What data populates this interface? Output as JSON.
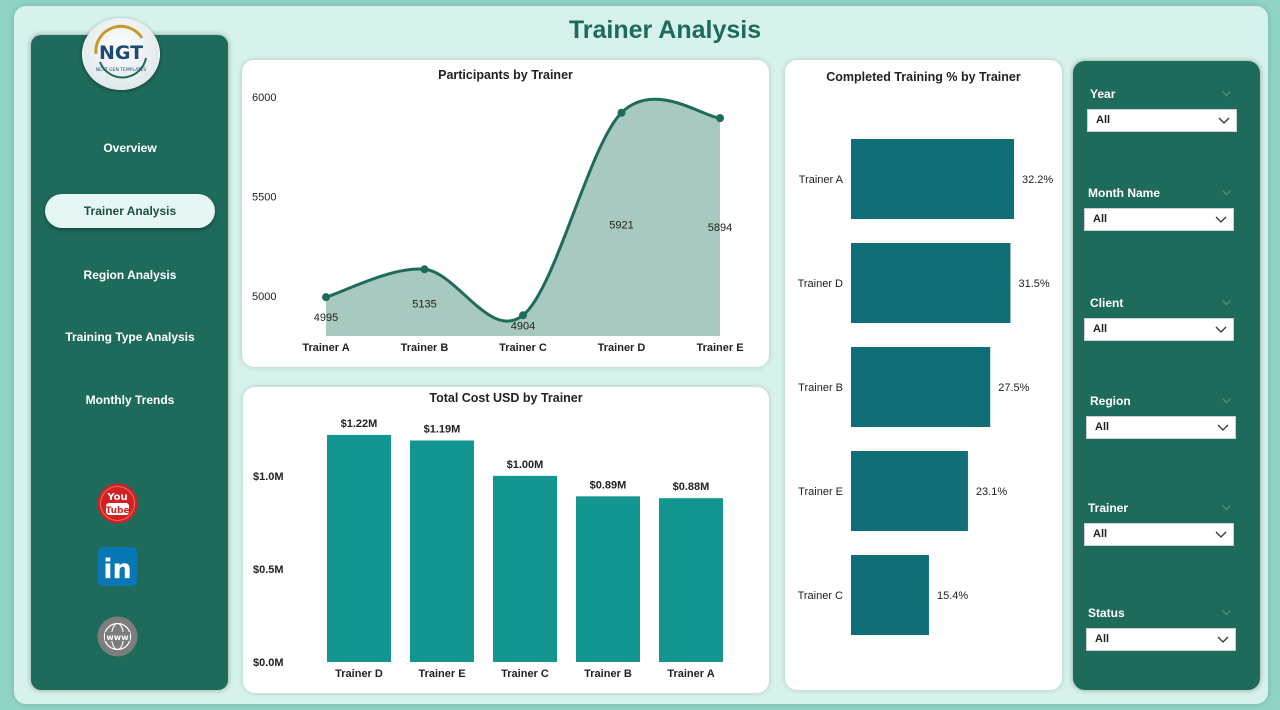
{
  "title": "Trainer Analysis",
  "logo": {
    "text": "NGT",
    "subtext": "NEXT GEN TEMPLATES"
  },
  "nav": [
    {
      "label": "Overview",
      "active": false
    },
    {
      "label": "Trainer Analysis",
      "active": true
    },
    {
      "label": "Region Analysis",
      "active": false
    },
    {
      "label": "Training Type Analysis",
      "active": false
    },
    {
      "label": "Monthly Trends",
      "active": false
    }
  ],
  "social": [
    {
      "icon": "youtube-icon",
      "text": "You Tube",
      "color": "#d32020"
    },
    {
      "icon": "linkedin-icon",
      "text": "in",
      "color": "#0a77b5"
    },
    {
      "icon": "globe-icon",
      "text": "www",
      "color": "#7d7d7d"
    }
  ],
  "colors": {
    "sidebar": "#1e6b5c",
    "area_fill": "#a8c9bf",
    "line": "#1e6b5c",
    "bar_cost": "#12968f",
    "bar_completed": "#0f6e76"
  },
  "chart_data": [
    {
      "type": "area",
      "title": "Participants by Trainer",
      "categories": [
        "Trainer A",
        "Trainer B",
        "Trainer C",
        "Trainer D",
        "Trainer E"
      ],
      "values": [
        4995,
        5135,
        4904,
        5921,
        5894
      ],
      "data_labels": [
        "4995",
        "5135",
        "4904",
        "5921",
        "5894"
      ],
      "yticks": [
        "5000",
        "5500",
        "6000"
      ],
      "ylim": [
        4800,
        6000
      ]
    },
    {
      "type": "bar",
      "title": "Total Cost USD by Trainer",
      "categories": [
        "Trainer D",
        "Trainer E",
        "Trainer C",
        "Trainer B",
        "Trainer A"
      ],
      "values": [
        1.22,
        1.19,
        1.0,
        0.89,
        0.88
      ],
      "data_labels": [
        "$1.22M",
        "$1.19M",
        "$1.00M",
        "$0.89M",
        "$0.88M"
      ],
      "yticks": [
        "$0.0M",
        "$0.5M",
        "$1.0M"
      ],
      "ylim": [
        0,
        1.3
      ]
    },
    {
      "type": "bar",
      "orientation": "horizontal",
      "title": "Completed Training % by Trainer",
      "categories": [
        "Trainer A",
        "Trainer D",
        "Trainer B",
        "Trainer E",
        "Trainer C"
      ],
      "values": [
        32.2,
        31.5,
        27.5,
        23.1,
        15.4
      ],
      "data_labels": [
        "32.2%",
        "31.5%",
        "27.5%",
        "23.1%",
        "15.4%"
      ],
      "xlim": [
        0,
        32.2
      ]
    }
  ],
  "filters": [
    {
      "label": "Year",
      "value": "All"
    },
    {
      "label": "Month Name",
      "value": "All"
    },
    {
      "label": "Client",
      "value": "All"
    },
    {
      "label": "Region",
      "value": "All"
    },
    {
      "label": "Trainer",
      "value": "All"
    },
    {
      "label": "Status",
      "value": "All"
    }
  ]
}
